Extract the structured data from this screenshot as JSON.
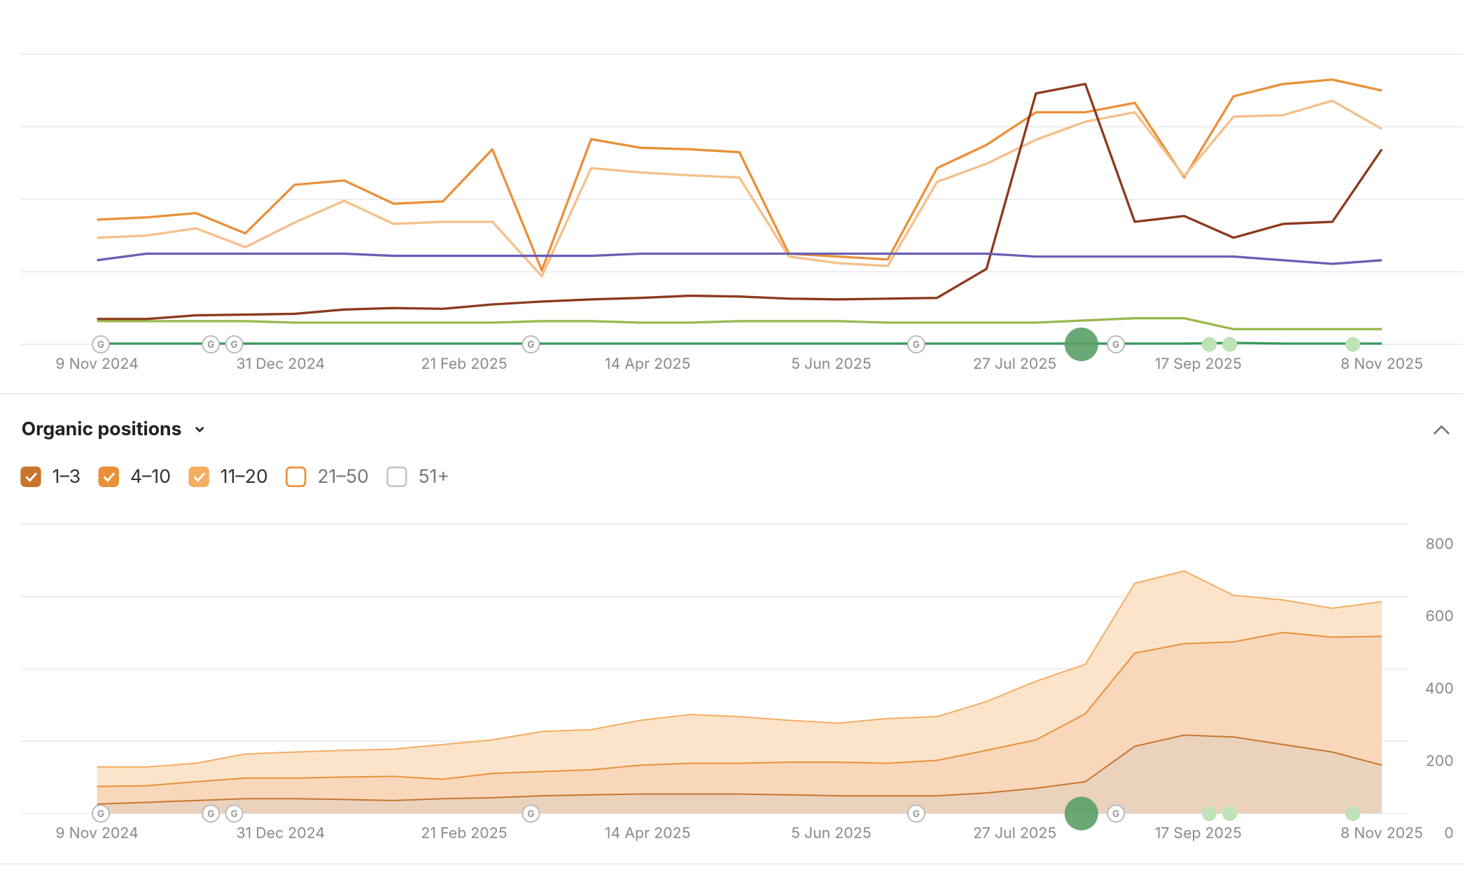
{
  "chart_data": [
    {
      "type": "line",
      "x": [
        "2024-11-09",
        "2024-11-23",
        "2024-12-07",
        "2024-12-21",
        "2025-01-04",
        "2025-01-18",
        "2025-02-01",
        "2025-02-15",
        "2025-03-01",
        "2025-03-15",
        "2025-03-29",
        "2025-04-12",
        "2025-04-26",
        "2025-05-10",
        "2025-05-24",
        "2025-06-07",
        "2025-06-21",
        "2025-07-05",
        "2025-07-19",
        "2025-08-02",
        "2025-08-16",
        "2025-08-30",
        "2025-09-13",
        "2025-09-27",
        "2025-10-11",
        "2025-10-25",
        "2025-11-08"
      ],
      "xlim": [
        "2024-11-09",
        "2025-11-08"
      ],
      "xticks": [
        {
          "value": "2024-11-09",
          "label": "9 Nov 2024"
        },
        {
          "value": "2024-12-31",
          "label": "31 Dec 2024"
        },
        {
          "value": "2025-02-21",
          "label": "21 Feb 2025"
        },
        {
          "value": "2025-04-14",
          "label": "14 Apr 2025"
        },
        {
          "value": "2025-06-05",
          "label": "5 Jun 2025"
        },
        {
          "value": "2025-07-27",
          "label": "27 Jul 2025"
        },
        {
          "value": "2025-09-17",
          "label": "17 Sep 2025"
        },
        {
          "value": "2025-11-08",
          "label": "8 Nov 2025"
        }
      ],
      "ylim": [
        0,
        4
      ],
      "gridlines": [
        0,
        1,
        2,
        3,
        4
      ],
      "series": [
        {
          "color": "#e8913a",
          "values": [
            1.72,
            1.75,
            1.81,
            1.53,
            2.2,
            2.26,
            1.94,
            1.97,
            2.69,
            1.02,
            2.83,
            2.71,
            2.69,
            2.65,
            1.25,
            1.21,
            1.17,
            2.43,
            2.75,
            3.2,
            3.2,
            3.33,
            2.3,
            3.42,
            3.59,
            3.65,
            3.5
          ]
        },
        {
          "color": "#f5c08a",
          "values": [
            1.47,
            1.5,
            1.6,
            1.34,
            1.68,
            1.98,
            1.66,
            1.69,
            1.69,
            0.94,
            2.43,
            2.37,
            2.33,
            2.3,
            1.21,
            1.12,
            1.08,
            2.24,
            2.49,
            2.82,
            3.07,
            3.2,
            2.32,
            3.14,
            3.16,
            3.36,
            2.97
          ]
        },
        {
          "color": "#8b3a1e",
          "values": [
            0.35,
            0.35,
            0.4,
            0.41,
            0.42,
            0.48,
            0.5,
            0.49,
            0.55,
            0.59,
            0.62,
            0.64,
            0.67,
            0.66,
            0.63,
            0.62,
            0.63,
            0.64,
            1.04,
            3.46,
            3.59,
            1.69,
            1.77,
            1.47,
            1.66,
            1.69,
            2.69
          ]
        },
        {
          "color": "#6b5fb5",
          "values": [
            1.16,
            1.25,
            1.25,
            1.25,
            1.25,
            1.25,
            1.22,
            1.22,
            1.22,
            1.22,
            1.22,
            1.25,
            1.25,
            1.25,
            1.25,
            1.25,
            1.25,
            1.25,
            1.25,
            1.21,
            1.21,
            1.21,
            1.21,
            1.21,
            1.16,
            1.11,
            1.16
          ]
        },
        {
          "color": "#9ab84f",
          "values": [
            0.32,
            0.32,
            0.32,
            0.32,
            0.3,
            0.3,
            0.3,
            0.3,
            0.3,
            0.32,
            0.32,
            0.3,
            0.3,
            0.32,
            0.32,
            0.32,
            0.3,
            0.3,
            0.3,
            0.3,
            0.33,
            0.36,
            0.36,
            0.21,
            0.21,
            0.21,
            0.21
          ]
        },
        {
          "color": "#3a9a5b",
          "values": [
            0.01,
            0.01,
            0.01,
            0.01,
            0.01,
            0.01,
            0.01,
            0.01,
            0.01,
            0.01,
            0.01,
            0.01,
            0.01,
            0.01,
            0.01,
            0.01,
            0.01,
            0.01,
            0.01,
            0.01,
            0.01,
            0.01,
            0.01,
            0.02,
            0.01,
            0.01,
            0.01
          ]
        }
      ]
    },
    {
      "type": "stacked-area",
      "title": "Organic positions",
      "x": [
        "2024-11-09",
        "2024-11-23",
        "2024-12-07",
        "2024-12-21",
        "2025-01-04",
        "2025-01-18",
        "2025-02-01",
        "2025-02-15",
        "2025-03-01",
        "2025-03-15",
        "2025-03-29",
        "2025-04-12",
        "2025-04-26",
        "2025-05-10",
        "2025-05-24",
        "2025-06-07",
        "2025-06-21",
        "2025-07-05",
        "2025-07-19",
        "2025-08-02",
        "2025-08-16",
        "2025-08-30",
        "2025-09-13",
        "2025-09-27",
        "2025-10-11",
        "2025-10-25",
        "2025-11-08"
      ],
      "xlim": [
        "2024-11-09",
        "2025-11-08"
      ],
      "xticks": [
        {
          "value": "2024-11-09",
          "label": "9 Nov 2024"
        },
        {
          "value": "2024-12-31",
          "label": "31 Dec 2024"
        },
        {
          "value": "2025-02-21",
          "label": "21 Feb 2025"
        },
        {
          "value": "2025-04-14",
          "label": "14 Apr 2025"
        },
        {
          "value": "2025-06-05",
          "label": "5 Jun 2025"
        },
        {
          "value": "2025-07-27",
          "label": "27 Jul 2025"
        },
        {
          "value": "2025-09-17",
          "label": "17 Sep 2025"
        },
        {
          "value": "2025-11-08",
          "label": "8 Nov 2025"
        }
      ],
      "ylim": [
        0,
        800
      ],
      "yticks": [
        0,
        200,
        400,
        600,
        800
      ],
      "series": [
        {
          "name": "1–3",
          "color": "#c8762e",
          "fill": "#ead2bd",
          "checked": true,
          "values": [
            26,
            31,
            36,
            41,
            41,
            39,
            36,
            41,
            44,
            49,
            52,
            54,
            54,
            54,
            52,
            49,
            49,
            49,
            57,
            70,
            88,
            186,
            217,
            212,
            191,
            170,
            134
          ]
        },
        {
          "name": "4–10",
          "color": "#e8913a",
          "fill": "#f8d7bb",
          "checked": true,
          "values": [
            49,
            46,
            52,
            57,
            57,
            62,
            67,
            54,
            67,
            67,
            69,
            80,
            85,
            85,
            90,
            93,
            90,
            98,
            118,
            134,
            188,
            258,
            253,
            263,
            310,
            318,
            356
          ]
        },
        {
          "name": "11–20",
          "color": "#f5ad62",
          "fill": "#fbe4ca",
          "checked": true,
          "values": [
            54,
            52,
            51,
            67,
            72,
            74,
            75,
            96,
            93,
            111,
            111,
            124,
            135,
            129,
            116,
            108,
            124,
            121,
            135,
            162,
            137,
            193,
            201,
            129,
            90,
            80,
            96
          ]
        }
      ],
      "hidden_series": [
        {
          "name": "21–50",
          "color": "#e8913a",
          "checked": false
        },
        {
          "name": "51+",
          "color": "#c8c8c8",
          "checked": false
        }
      ]
    }
  ],
  "update_marker": "G"
}
